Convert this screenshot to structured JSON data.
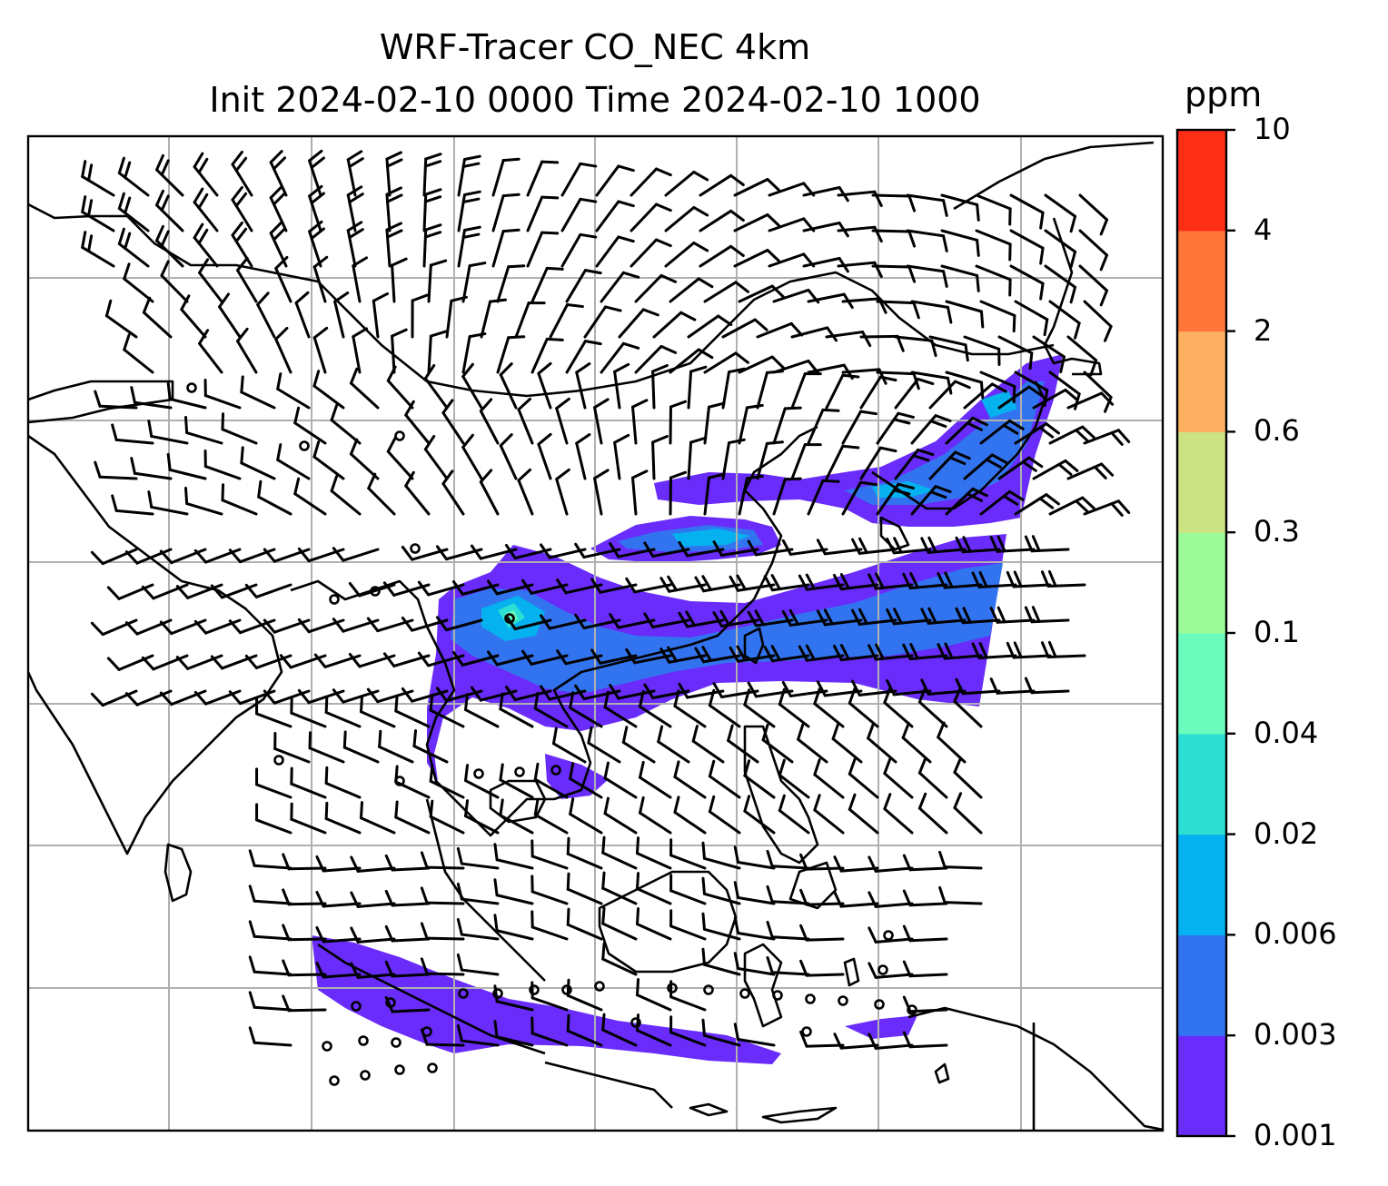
{
  "title": {
    "line1": "WRF-Tracer CO_NEC 4km",
    "line2": "Init 2024-02-10 0000 Time 2024-02-10 1000"
  },
  "colorbar": {
    "unit": "ppm",
    "levels": [
      "0.001",
      "0.003",
      "0.006",
      "0.02",
      "0.04",
      "0.1",
      "0.3",
      "0.6",
      "2",
      "4",
      "10"
    ],
    "colors": [
      "#6a2cfb",
      "#3274f0",
      "#05b1ee",
      "#2dded3",
      "#6bfbbd",
      "#9cfa99",
      "#cde283",
      "#fdb062",
      "#fe7539",
      "#fe2d16"
    ]
  },
  "map": {
    "background": "#ffffff",
    "coastline_color": "#000000",
    "grid_color": "#b0b0b0",
    "wind_barb_color": "#000000"
  }
}
